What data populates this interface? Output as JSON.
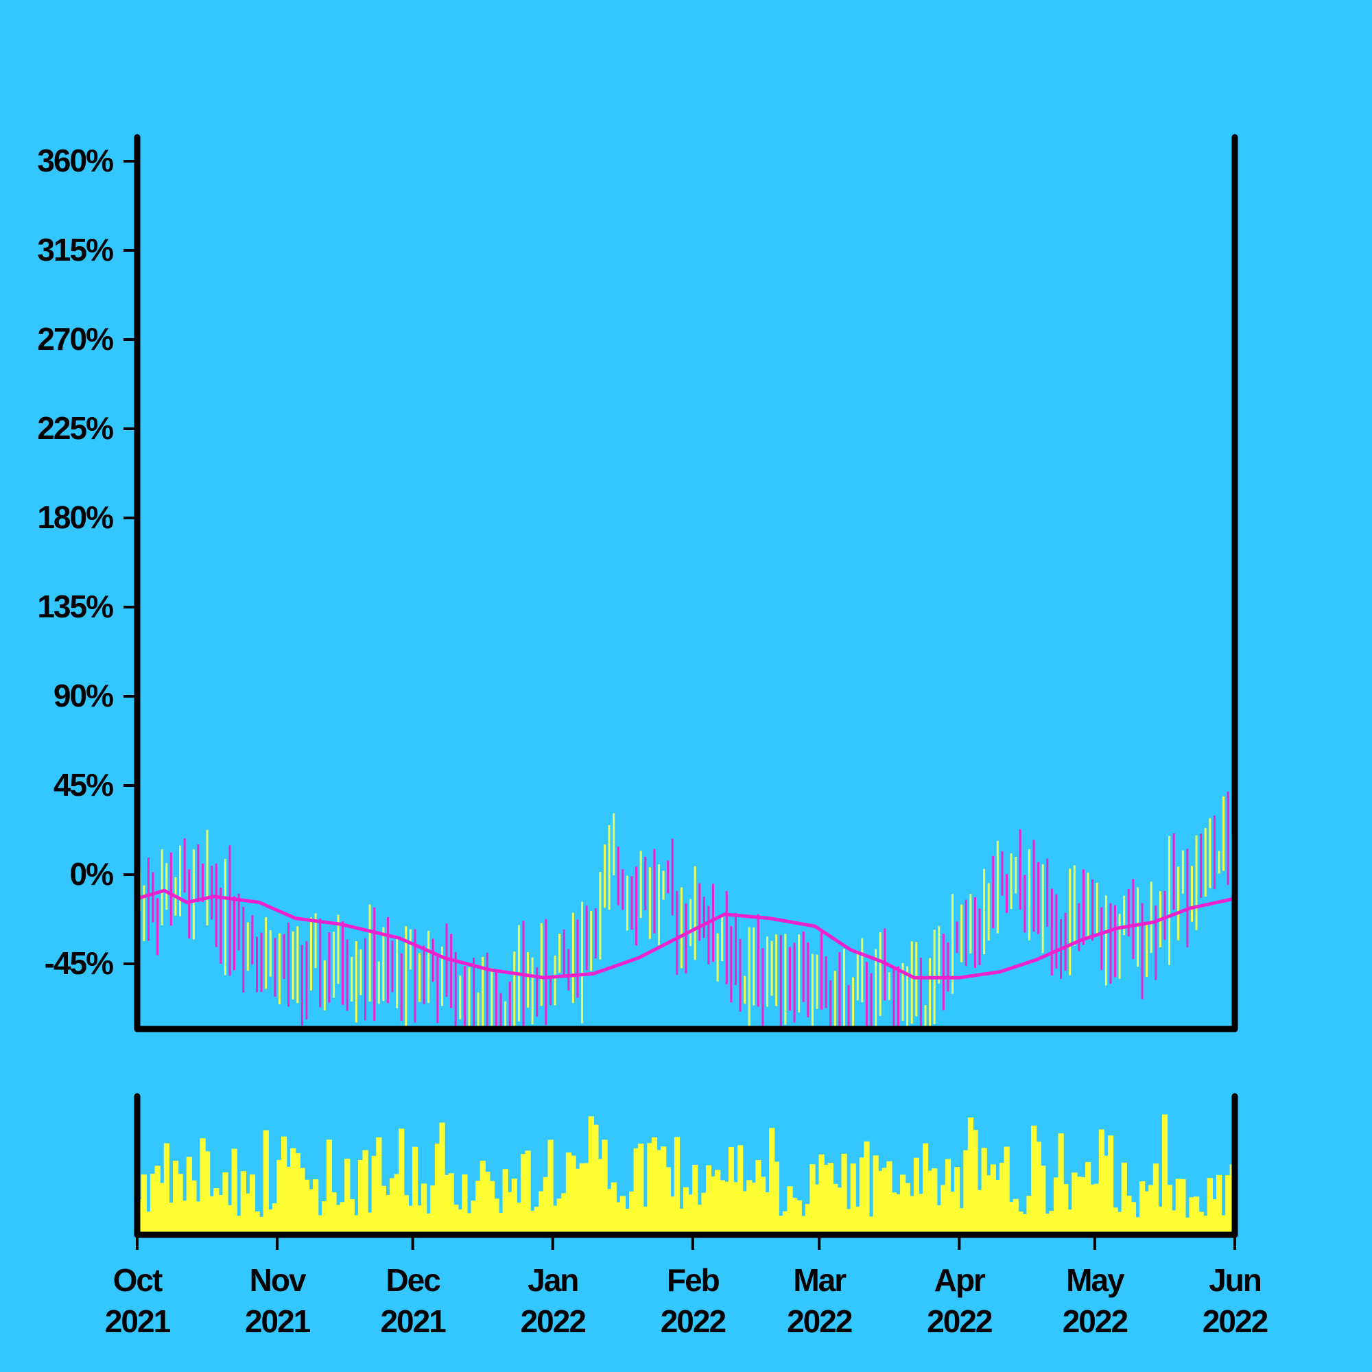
{
  "colors": {
    "background": "#33C6FF",
    "axis": "#000000",
    "up_bar": "#EEFF55",
    "down_bar": "#EE22CC",
    "moving_average": "#EE22CC",
    "volume": "#FFFF33"
  },
  "chart_data": {
    "type": "ohlc",
    "title": "",
    "xlabel": "",
    "ylabel": "",
    "y_unit": "%",
    "ylim": [
      -80,
      372
    ],
    "y_ticks": [
      -45,
      0,
      45,
      90,
      135,
      180,
      225,
      270,
      315,
      360
    ],
    "y_tick_labels": [
      "-45%",
      "0%",
      "45%",
      "90%",
      "135%",
      "180%",
      "225%",
      "270%",
      "315%",
      "360%"
    ],
    "x_range": [
      "2021-10-01",
      "2022-06-01"
    ],
    "x_ticks": [
      "2021-10-01",
      "2021-11-01",
      "2021-12-01",
      "2022-01-01",
      "2022-02-01",
      "2022-03-01",
      "2022-04-01",
      "2022-05-01",
      "2022-06-01"
    ],
    "x_tick_labels": [
      [
        "Oct",
        "2021"
      ],
      [
        "Nov",
        "2021"
      ],
      [
        "Dec",
        "2021"
      ],
      [
        "Jan",
        "2022"
      ],
      [
        "Feb",
        "2022"
      ],
      [
        "Mar",
        "2022"
      ],
      [
        "Apr",
        "2022"
      ],
      [
        "May",
        "2022"
      ],
      [
        "Jun",
        "2022"
      ]
    ],
    "grid": false,
    "legend": "none",
    "price_anchors": [
      [
        "2021-10-01",
        -12
      ],
      [
        "2021-10-08",
        -8
      ],
      [
        "2021-10-15",
        -10
      ],
      [
        "2021-10-22",
        -20
      ],
      [
        "2021-10-29",
        -38
      ],
      [
        "2021-11-05",
        -52
      ],
      [
        "2021-11-12",
        -48
      ],
      [
        "2021-11-19",
        -42
      ],
      [
        "2021-11-26",
        -55
      ],
      [
        "2021-12-03",
        -45
      ],
      [
        "2021-12-10",
        -58
      ],
      [
        "2021-12-17",
        -70
      ],
      [
        "2021-12-24",
        -58
      ],
      [
        "2021-12-31",
        -52
      ],
      [
        "2022-01-07",
        -38
      ],
      [
        "2022-01-14",
        0
      ],
      [
        "2022-01-21",
        -5
      ],
      [
        "2022-01-28",
        -20
      ],
      [
        "2022-02-04",
        -22
      ],
      [
        "2022-02-11",
        -55
      ],
      [
        "2022-02-18",
        -45
      ],
      [
        "2022-02-25",
        -50
      ],
      [
        "2022-03-04",
        -65
      ],
      [
        "2022-03-11",
        -62
      ],
      [
        "2022-03-18",
        -58
      ],
      [
        "2022-03-25",
        -60
      ],
      [
        "2022-04-01",
        -35
      ],
      [
        "2022-04-08",
        -15
      ],
      [
        "2022-04-15",
        -8
      ],
      [
        "2022-04-22",
        -22
      ],
      [
        "2022-04-29",
        -28
      ],
      [
        "2022-05-06",
        -35
      ],
      [
        "2022-05-13",
        -25
      ],
      [
        "2022-05-20",
        -5
      ],
      [
        "2022-05-27",
        8
      ],
      [
        "2022-06-01",
        12
      ]
    ],
    "moving_average": [
      [
        "2021-10-01",
        -12
      ],
      [
        "2021-10-07",
        -8
      ],
      [
        "2021-10-12",
        -14
      ],
      [
        "2021-10-18",
        -11
      ],
      [
        "2021-10-28",
        -14
      ],
      [
        "2021-11-05",
        -22
      ],
      [
        "2021-11-15",
        -25
      ],
      [
        "2021-11-28",
        -32
      ],
      [
        "2021-12-08",
        -42
      ],
      [
        "2021-12-18",
        -48
      ],
      [
        "2021-12-30",
        -52
      ],
      [
        "2022-01-10",
        -50
      ],
      [
        "2022-01-20",
        -42
      ],
      [
        "2022-02-01",
        -28
      ],
      [
        "2022-02-08",
        -20
      ],
      [
        "2022-02-18",
        -22
      ],
      [
        "2022-02-28",
        -26
      ],
      [
        "2022-03-08",
        -38
      ],
      [
        "2022-03-15",
        -44
      ],
      [
        "2022-03-22",
        -52
      ],
      [
        "2022-04-01",
        -52
      ],
      [
        "2022-04-10",
        -49
      ],
      [
        "2022-04-18",
        -43
      ],
      [
        "2022-04-28",
        -33
      ],
      [
        "2022-05-06",
        -27
      ],
      [
        "2022-05-14",
        -24
      ],
      [
        "2022-05-22",
        -17
      ],
      [
        "2022-06-01",
        -12
      ]
    ],
    "volume_subplot": {
      "y_axis_labels": false
    },
    "panels": {
      "price_panel": "top",
      "volume_panel": "bottom",
      "shared_x_axis": true
    }
  }
}
